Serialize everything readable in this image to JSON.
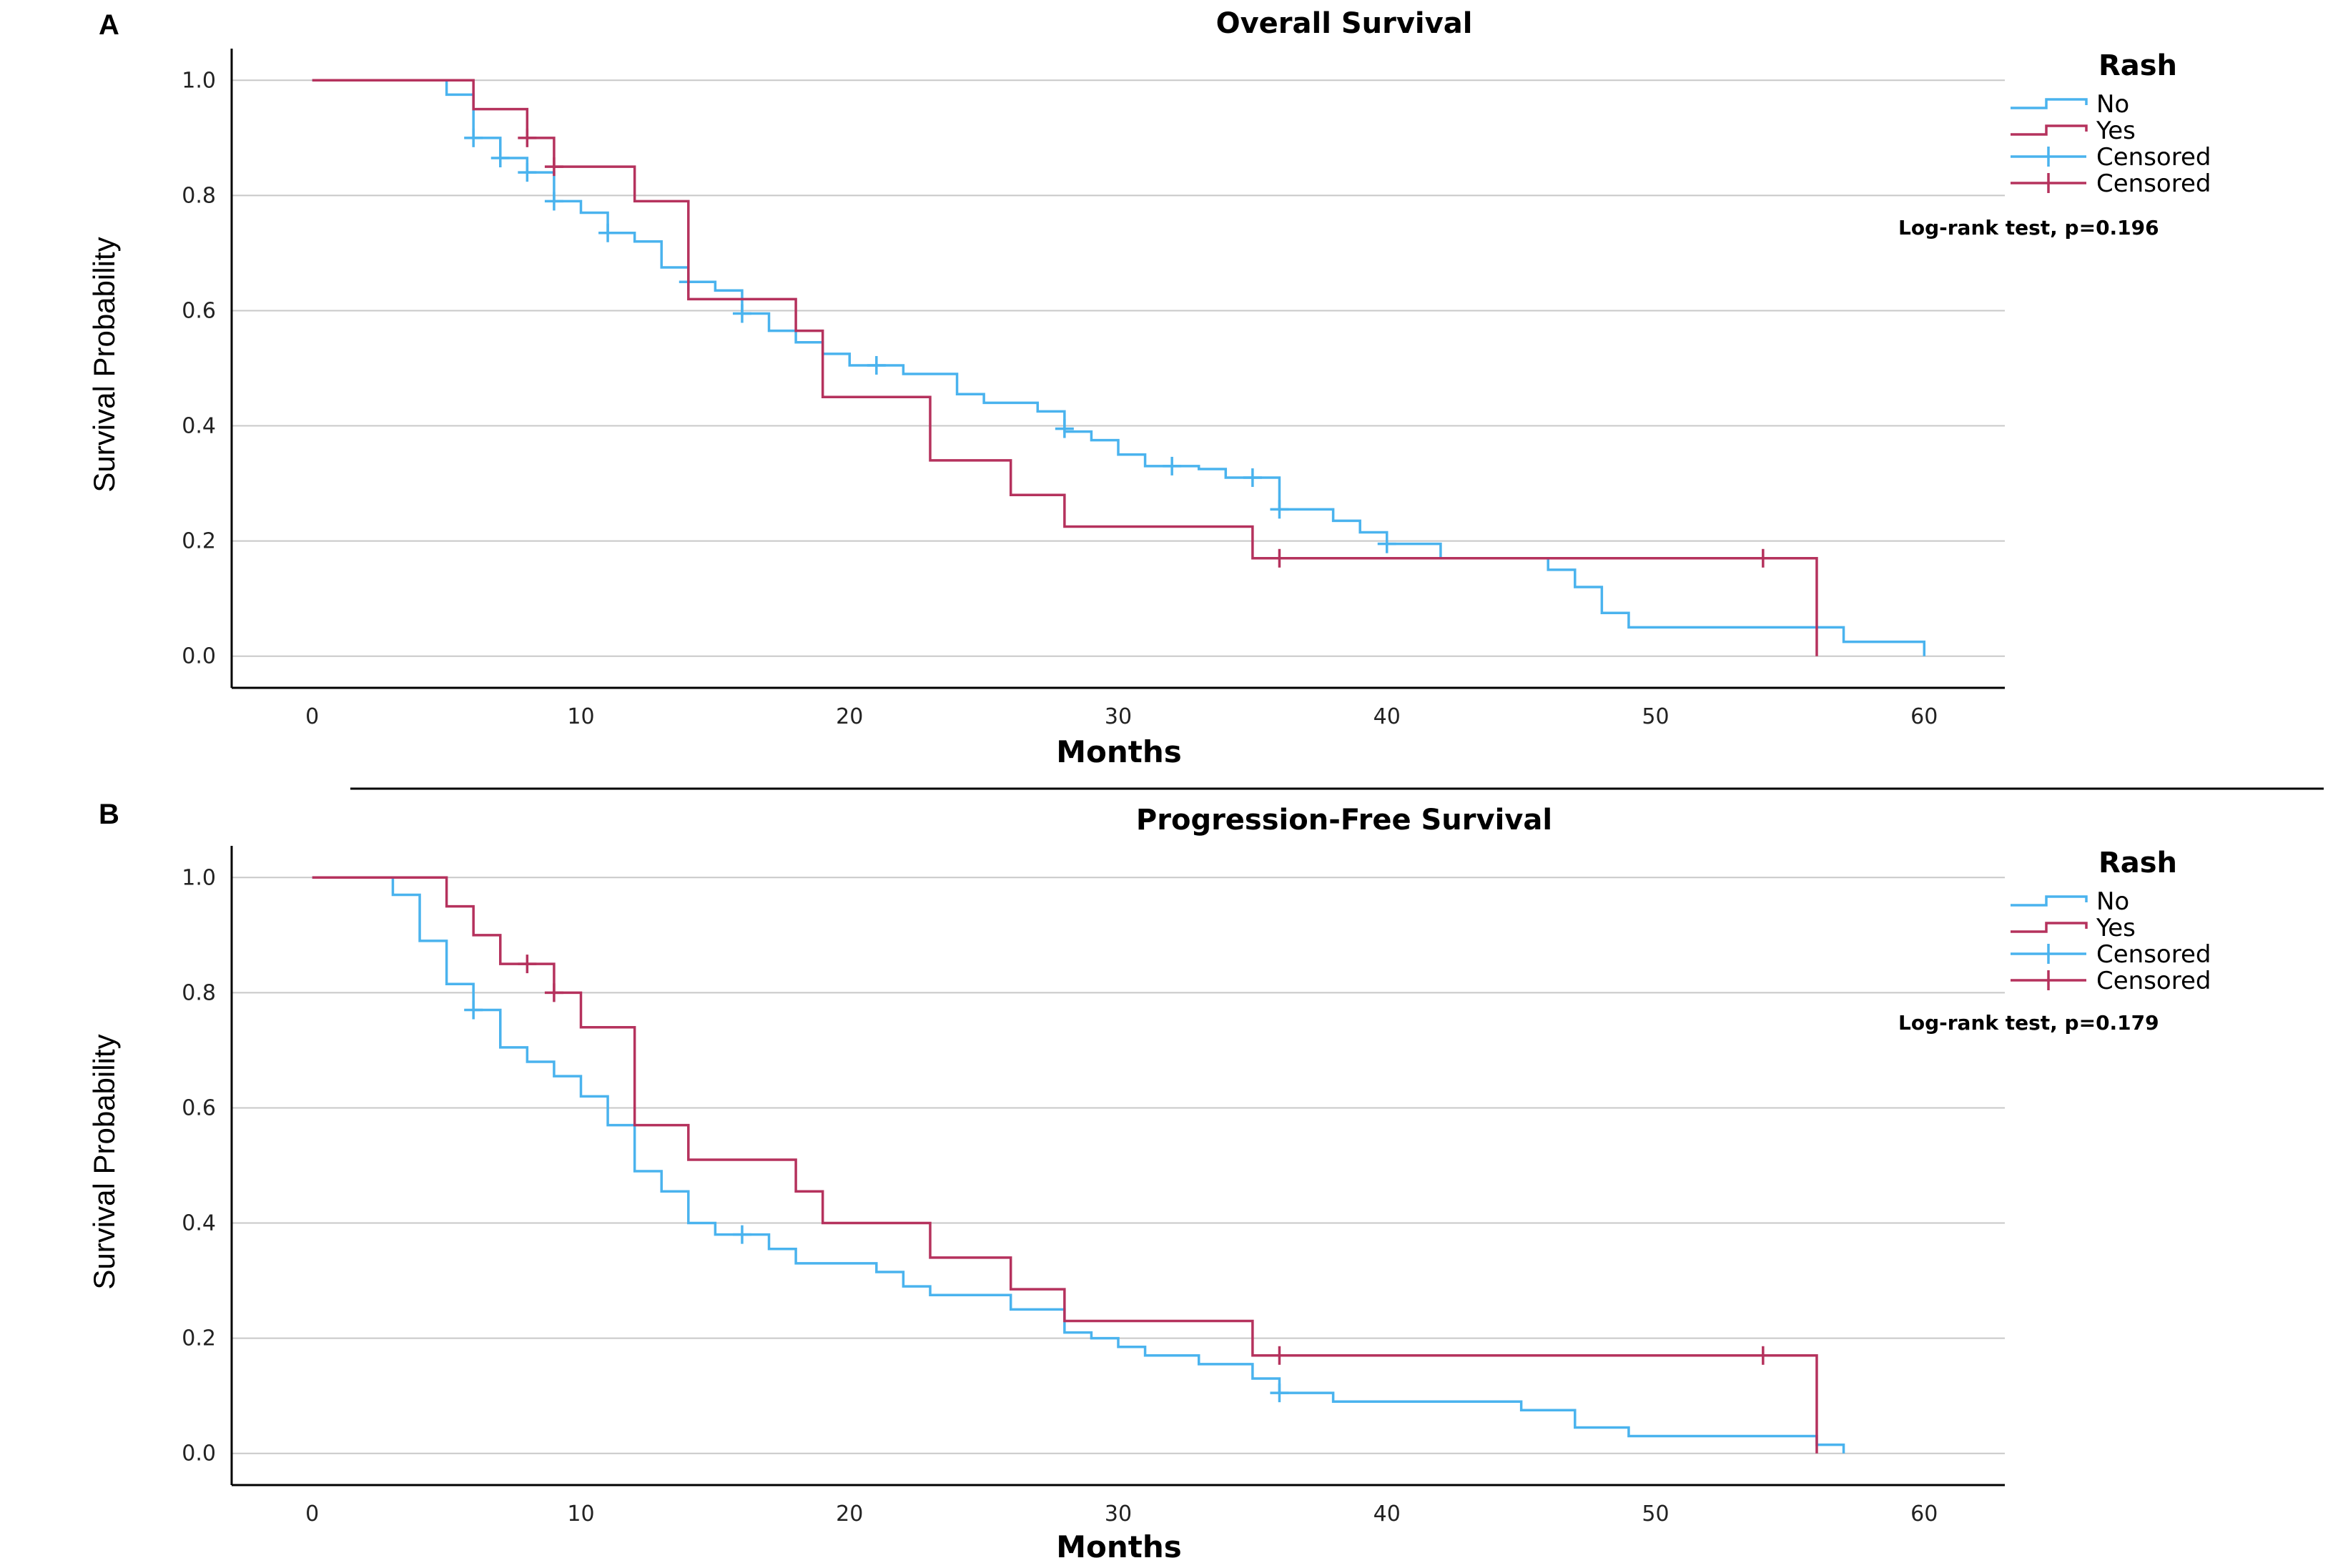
{
  "separator": true,
  "chart_data": [
    {
      "type": "line",
      "panel": "A",
      "title": "Overall Survival",
      "xlabel": "Months",
      "ylabel": "Survival Probability",
      "xlim": [
        -3,
        63
      ],
      "ylim": [
        -0.055,
        1.055
      ],
      "xticks": [
        0,
        10,
        20,
        30,
        40,
        50,
        60
      ],
      "xtick_labels": [
        "0",
        "10",
        "20",
        "30",
        "40",
        "50",
        "60"
      ],
      "yticks": [
        0.0,
        0.2,
        0.4,
        0.6,
        0.8,
        1.0
      ],
      "ytick_labels": [
        "0.0",
        "0.2",
        "0.4",
        "0.6",
        "0.8",
        "1.0"
      ],
      "grid": "horizontal",
      "legend": {
        "title": "Rash",
        "placement": "top-right",
        "entries": [
          "No",
          "Yes",
          "Censored",
          "Censored"
        ]
      },
      "annotation": "Log-rank test, p=0.196",
      "series": [
        {
          "name": "No",
          "color": "#4ab3ee",
          "steps": [
            [
              0,
              1.0
            ],
            [
              5,
              0.975
            ],
            [
              6,
              0.9
            ],
            [
              7,
              0.865
            ],
            [
              8,
              0.84
            ],
            [
              9,
              0.79
            ],
            [
              10,
              0.77
            ],
            [
              11,
              0.735
            ],
            [
              12,
              0.72
            ],
            [
              13,
              0.675
            ],
            [
              14,
              0.65
            ],
            [
              15,
              0.635
            ],
            [
              16,
              0.595
            ],
            [
              17,
              0.565
            ],
            [
              18,
              0.545
            ],
            [
              19,
              0.525
            ],
            [
              20,
              0.505
            ],
            [
              22,
              0.49
            ],
            [
              24,
              0.455
            ],
            [
              25,
              0.44
            ],
            [
              27,
              0.425
            ],
            [
              28,
              0.39
            ],
            [
              29,
              0.375
            ],
            [
              30,
              0.35
            ],
            [
              31,
              0.33
            ],
            [
              33,
              0.325
            ],
            [
              34,
              0.31
            ],
            [
              36,
              0.255
            ],
            [
              38,
              0.235
            ],
            [
              39,
              0.215
            ],
            [
              40,
              0.195
            ],
            [
              42,
              0.17
            ],
            [
              46,
              0.15
            ],
            [
              47,
              0.12
            ],
            [
              48,
              0.075
            ],
            [
              49,
              0.05
            ],
            [
              57,
              0.025
            ],
            [
              60,
              0.0
            ]
          ],
          "end_x": 60,
          "censored": [
            [
              6,
              0.9
            ],
            [
              7,
              0.865
            ],
            [
              8,
              0.84
            ],
            [
              9,
              0.79
            ],
            [
              11,
              0.735
            ],
            [
              14,
              0.65
            ],
            [
              16,
              0.595
            ],
            [
              21,
              0.505
            ],
            [
              28,
              0.395
            ],
            [
              32,
              0.33
            ],
            [
              35,
              0.31
            ],
            [
              36,
              0.255
            ],
            [
              40,
              0.195
            ]
          ]
        },
        {
          "name": "Yes",
          "color": "#b5325d",
          "steps": [
            [
              0,
              1.0
            ],
            [
              6,
              0.95
            ],
            [
              8,
              0.9
            ],
            [
              9,
              0.85
            ],
            [
              12,
              0.79
            ],
            [
              14,
              0.62
            ],
            [
              18,
              0.565
            ],
            [
              19,
              0.45
            ],
            [
              23,
              0.34
            ],
            [
              26,
              0.28
            ],
            [
              28,
              0.225
            ],
            [
              35,
              0.17
            ],
            [
              56,
              0.0
            ]
          ],
          "end_x": 56,
          "censored": [
            [
              8,
              0.9
            ],
            [
              9,
              0.85
            ],
            [
              36,
              0.17
            ],
            [
              54,
              0.17
            ]
          ]
        }
      ]
    },
    {
      "type": "line",
      "panel": "B",
      "title": "Progression-Free Survival",
      "xlabel": "Months",
      "ylabel": "Survival Probability",
      "xlim": [
        -3,
        63
      ],
      "ylim": [
        -0.055,
        1.055
      ],
      "xticks": [
        0,
        10,
        20,
        30,
        40,
        50,
        60
      ],
      "xtick_labels": [
        "0",
        "10",
        "20",
        "30",
        "40",
        "50",
        "60"
      ],
      "yticks": [
        0.0,
        0.2,
        0.4,
        0.6,
        0.8,
        1.0
      ],
      "ytick_labels": [
        "0.0",
        "0.2",
        "0.4",
        "0.6",
        "0.8",
        "1.0"
      ],
      "grid": "horizontal",
      "legend": {
        "title": "Rash",
        "placement": "top-right",
        "entries": [
          "No",
          "Yes",
          "Censored",
          "Censored"
        ]
      },
      "annotation": "Log-rank test, p=0.179",
      "series": [
        {
          "name": "No",
          "color": "#4ab3ee",
          "steps": [
            [
              0,
              1.0
            ],
            [
              3,
              0.97
            ],
            [
              4,
              0.89
            ],
            [
              5,
              0.815
            ],
            [
              6,
              0.77
            ],
            [
              7,
              0.705
            ],
            [
              8,
              0.68
            ],
            [
              9,
              0.655
            ],
            [
              10,
              0.62
            ],
            [
              11,
              0.57
            ],
            [
              12,
              0.49
            ],
            [
              13,
              0.455
            ],
            [
              14,
              0.4
            ],
            [
              15,
              0.38
            ],
            [
              17,
              0.355
            ],
            [
              18,
              0.33
            ],
            [
              21,
              0.315
            ],
            [
              22,
              0.29
            ],
            [
              23,
              0.275
            ],
            [
              26,
              0.25
            ],
            [
              28,
              0.21
            ],
            [
              29,
              0.2
            ],
            [
              30,
              0.185
            ],
            [
              31,
              0.17
            ],
            [
              33,
              0.155
            ],
            [
              35,
              0.13
            ],
            [
              36,
              0.105
            ],
            [
              38,
              0.09
            ],
            [
              45,
              0.075
            ],
            [
              47,
              0.045
            ],
            [
              49,
              0.03
            ],
            [
              56,
              0.015
            ],
            [
              57,
              0.0
            ]
          ],
          "end_x": 57,
          "censored": [
            [
              6,
              0.77
            ],
            [
              16,
              0.38
            ],
            [
              36,
              0.105
            ]
          ]
        },
        {
          "name": "Yes",
          "color": "#b5325d",
          "steps": [
            [
              0,
              1.0
            ],
            [
              5,
              0.95
            ],
            [
              6,
              0.9
            ],
            [
              7,
              0.85
            ],
            [
              9,
              0.8
            ],
            [
              10,
              0.74
            ],
            [
              12,
              0.57
            ],
            [
              14,
              0.51
            ],
            [
              18,
              0.455
            ],
            [
              19,
              0.4
            ],
            [
              23,
              0.34
            ],
            [
              26,
              0.285
            ],
            [
              28,
              0.23
            ],
            [
              35,
              0.17
            ],
            [
              56,
              0.0
            ]
          ],
          "end_x": 56,
          "censored": [
            [
              8,
              0.85
            ],
            [
              9,
              0.8
            ],
            [
              36,
              0.17
            ],
            [
              54,
              0.17
            ]
          ]
        }
      ]
    }
  ]
}
